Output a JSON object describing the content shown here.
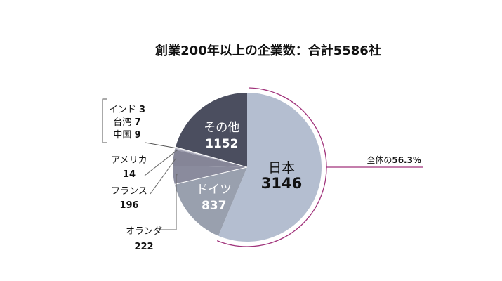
{
  "chart_data": {
    "type": "pie",
    "title": "創業200年以上の企業数：合計5586社",
    "slices": [
      {
        "name": "日本",
        "value": 3146,
        "color": "#b4bed0"
      },
      {
        "name": "ドイツ",
        "value": 837,
        "color": "#99a0ae"
      },
      {
        "name": "オランダ",
        "value": 222,
        "color": "#8a8b9d"
      },
      {
        "name": "フランス",
        "value": 196,
        "color": "#858597"
      },
      {
        "name": "アメリカ",
        "value": 14,
        "color": "#9c9cae"
      },
      {
        "name": "中国",
        "value": 9,
        "color": "#c7c7d2"
      },
      {
        "name": "台湾",
        "value": 7,
        "color": "#d6d6de"
      },
      {
        "name": "インド",
        "value": 3,
        "color": "#e2e2e8"
      },
      {
        "name": "その他",
        "value": 1152,
        "color": "#4b4e5f"
      }
    ],
    "annotation": {
      "prefix": "全体の",
      "value": "56.3%",
      "color": "#a0327a"
    },
    "bracket_color": "#555555"
  }
}
